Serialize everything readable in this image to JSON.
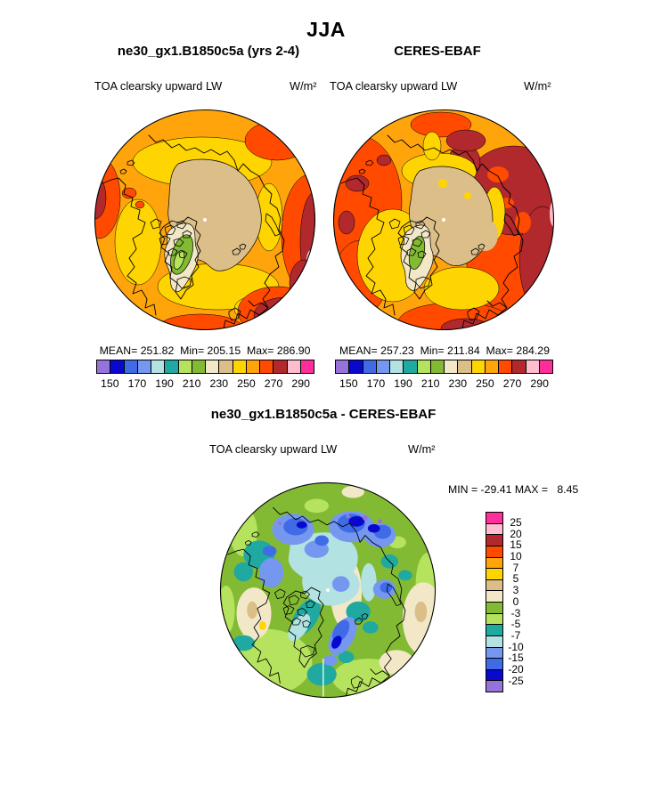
{
  "title": "JJA",
  "palette": {
    "p1": "#9673DB",
    "p2": "#0909CD",
    "p3": "#3F6BE6",
    "p4": "#7697EF",
    "p5": "#B2E2E2",
    "p6": "#1FA9A0",
    "p7": "#B6E35E",
    "p8": "#83BA34",
    "p9": "#F2E8C8",
    "p10": "#DCBE89",
    "p11": "#FFD501",
    "p12": "#FFA40B",
    "p13": "#FF4A00",
    "p14": "#B1282D",
    "p15": "#FFBDCF",
    "p16": "#FF2E9A",
    "coast": "#000000",
    "pole": "#FFFFFF",
    "bg": "#FFFFFF"
  },
  "panels": {
    "model": {
      "title": "ne30_gx1.B1850c5a (yrs 2-4)",
      "variable": "TOA clearsky upward LW",
      "units": "W/m²",
      "stats": "MEAN= 251.82  Min= 205.15  Max= 286.90"
    },
    "obs": {
      "title": "CERES-EBAF",
      "variable": "TOA clearsky upward LW",
      "units": "W/m²",
      "stats": "MEAN= 257.23  Min= 211.84  Max= 284.29"
    },
    "diff": {
      "title": "ne30_gx1.B1850c5a - CERES-EBAF",
      "variable": "TOA clearsky upward LW",
      "units": "W/m²",
      "stats": "MIN = -29.41 MAX =   8.45"
    }
  },
  "colorbars": {
    "lw": {
      "cells": [
        "p1",
        "p2",
        "p3",
        "p4",
        "p5",
        "p6",
        "p7",
        "p8",
        "p9",
        "p10",
        "p11",
        "p12",
        "p13",
        "p14",
        "p15",
        "p16"
      ],
      "ticks": [
        "150",
        "170",
        "190",
        "210",
        "230",
        "250",
        "270",
        "290"
      ]
    },
    "diff": {
      "cells": [
        "p16",
        "p15",
        "p14",
        "p13",
        "p12",
        "p11",
        "p10",
        "p9",
        "p8",
        "p7",
        "p6",
        "p5",
        "p4",
        "p3",
        "p2",
        "p1"
      ],
      "ticks": [
        "25",
        "20",
        "15",
        "10",
        "7",
        "5",
        "3",
        "0",
        "-3",
        "-5",
        "-7",
        "-10",
        "-15",
        "-20",
        "-25"
      ]
    }
  },
  "chart_data": [
    {
      "type": "heatmap",
      "subtype": "filled-contour-map",
      "projection": "north-polar-stereographic",
      "panel": "model",
      "season": "JJA",
      "title": "ne30_gx1.B1850c5a (yrs 2-4)",
      "field": "TOA clearsky upward LW",
      "units": "W/m²",
      "mean": 251.82,
      "min": 205.15,
      "max": 286.9,
      "contour_levels": [
        150,
        160,
        170,
        180,
        190,
        200,
        210,
        220,
        230,
        240,
        250,
        260,
        270,
        280,
        290
      ],
      "labeled_ticks": [
        150,
        170,
        190,
        210,
        230,
        250,
        270,
        290
      ],
      "colormap": "amwg-16",
      "legend_position": "bottom-horizontal"
    },
    {
      "type": "heatmap",
      "subtype": "filled-contour-map",
      "projection": "north-polar-stereographic",
      "panel": "observations",
      "season": "JJA",
      "title": "CERES-EBAF",
      "field": "TOA clearsky upward LW",
      "units": "W/m²",
      "mean": 257.23,
      "min": 211.84,
      "max": 284.29,
      "contour_levels": [
        150,
        160,
        170,
        180,
        190,
        200,
        210,
        220,
        230,
        240,
        250,
        260,
        270,
        280,
        290
      ],
      "labeled_ticks": [
        150,
        170,
        190,
        210,
        230,
        250,
        270,
        290
      ],
      "colormap": "amwg-16",
      "legend_position": "bottom-horizontal"
    },
    {
      "type": "heatmap",
      "subtype": "filled-contour-map",
      "projection": "north-polar-stereographic",
      "panel": "difference",
      "season": "JJA",
      "title": "ne30_gx1.B1850c5a - CERES-EBAF",
      "field": "TOA clearsky upward LW",
      "units": "W/m²",
      "min": -29.41,
      "max": 8.45,
      "contour_levels": [
        -25,
        -20,
        -15,
        -10,
        -7,
        -5,
        -3,
        0,
        3,
        5,
        7,
        10,
        15,
        20,
        25
      ],
      "labeled_ticks": [
        25,
        20,
        15,
        10,
        7,
        5,
        3,
        0,
        -3,
        -5,
        -7,
        -10,
        -15,
        -20,
        -25
      ],
      "colormap": "amwg-16-reversed",
      "legend_position": "right-vertical"
    }
  ]
}
